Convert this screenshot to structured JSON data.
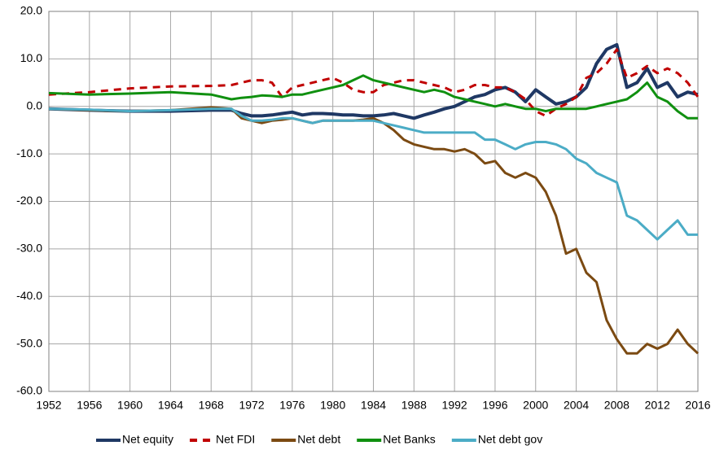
{
  "chart_data": {
    "type": "line",
    "x": [
      1952,
      1956,
      1960,
      1964,
      1968,
      1970,
      1971,
      1972,
      1973,
      1974,
      1975,
      1976,
      1977,
      1978,
      1979,
      1980,
      1981,
      1982,
      1983,
      1984,
      1985,
      1986,
      1987,
      1988,
      1989,
      1990,
      1991,
      1992,
      1993,
      1994,
      1995,
      1996,
      1997,
      1998,
      1999,
      2000,
      2001,
      2002,
      2003,
      2004,
      2005,
      2006,
      2007,
      2008,
      2009,
      2010,
      2011,
      2012,
      2013,
      2014,
      2015,
      2016
    ],
    "series": [
      {
        "name": "Net equity",
        "color": "#1f3864",
        "values": [
          -0.5,
          -0.8,
          -1,
          -1,
          -0.8,
          -0.8,
          -1.5,
          -2,
          -2,
          -1.8,
          -1.5,
          -1.2,
          -1.8,
          -1.5,
          -1.5,
          -1.6,
          -1.8,
          -1.8,
          -2,
          -2,
          -1.8,
          -1.5,
          -2,
          -2.5,
          -1.8,
          -1.2,
          -0.5,
          0,
          1,
          2,
          2.5,
          3.5,
          4,
          3,
          1,
          3.5,
          2,
          0.5,
          1,
          2,
          4,
          9,
          12,
          13,
          4,
          5,
          8,
          4,
          5,
          2,
          3,
          2.5
        ]
      },
      {
        "name": "Net FDI",
        "color": "#c00000",
        "dashed": true,
        "values": [
          2.5,
          3,
          3.8,
          4.2,
          4.3,
          4.5,
          5,
          5.5,
          5.5,
          5,
          2,
          4,
          4.5,
          5,
          5.5,
          6,
          5,
          3.5,
          3,
          3,
          4.5,
          5,
          5.5,
          5.5,
          5,
          4.5,
          4,
          3,
          3.5,
          4.5,
          4.5,
          4,
          4,
          3,
          1.5,
          -1,
          -2,
          -0.5,
          0.5,
          2,
          6,
          7,
          9,
          12,
          6,
          7,
          8.5,
          7,
          8,
          7,
          5,
          2
        ]
      },
      {
        "name": "Net debt",
        "color": "#7b4a12",
        "values": [
          -0.5,
          -0.8,
          -1,
          -0.8,
          -0.2,
          -0.5,
          -2.5,
          -3,
          -3.5,
          -3,
          -2.8,
          -2.5,
          -3,
          -3.5,
          -3,
          -3,
          -3,
          -3,
          -2.8,
          -2.5,
          -3.5,
          -5,
          -7,
          -8,
          -8.5,
          -9,
          -9,
          -9.5,
          -9,
          -10,
          -12,
          -11.5,
          -14,
          -15,
          -14,
          -15,
          -18,
          -23,
          -31,
          -30,
          -35,
          -37,
          -45,
          -49,
          -52,
          -52,
          -50,
          -51,
          -50,
          -47,
          -50,
          -52
        ]
      },
      {
        "name": "Net Banks",
        "color": "#109010",
        "values": [
          2.8,
          2.5,
          2.7,
          3,
          2.5,
          1.5,
          1.8,
          2,
          2.3,
          2.2,
          2,
          2.5,
          2.5,
          3,
          3.5,
          4,
          4.5,
          5.5,
          6.5,
          5.5,
          5,
          4.5,
          4,
          3.5,
          3,
          3.5,
          3,
          2,
          1.5,
          1,
          0.5,
          0,
          0.5,
          0,
          -0.5,
          -0.5,
          -1,
          -0.5,
          -0.5,
          -0.5,
          -0.5,
          0,
          0.5,
          1,
          1.5,
          3,
          5,
          2,
          1,
          -1,
          -2.5,
          -2.5
        ]
      },
      {
        "name": "Net debt gov",
        "color": "#4bacc6",
        "values": [
          -0.5,
          -0.7,
          -1,
          -0.8,
          -0.5,
          -0.5,
          -2,
          -3,
          -3,
          -2.8,
          -2.5,
          -2.5,
          -3,
          -3.5,
          -3,
          -3,
          -3,
          -3,
          -3,
          -3,
          -3.5,
          -4,
          -4.5,
          -5,
          -5.5,
          -5.5,
          -5.5,
          -5.5,
          -5.5,
          -5.5,
          -7,
          -7,
          -8,
          -9,
          -8,
          -7.5,
          -7.5,
          -8,
          -9,
          -11,
          -12,
          -14,
          -15,
          -16,
          -23,
          -24,
          -26,
          -28,
          -26,
          -24,
          -27,
          -27
        ]
      }
    ],
    "xlim": [
      1952,
      2016
    ],
    "xticks": [
      1952,
      1956,
      1960,
      1964,
      1968,
      1972,
      1976,
      1980,
      1984,
      1988,
      1992,
      1996,
      2000,
      2004,
      2008,
      2012,
      2016
    ],
    "ylim": [
      -60,
      20
    ],
    "yticks": [
      {
        "value": -60,
        "label": "-60.0"
      },
      {
        "value": -50,
        "label": "-50.0"
      },
      {
        "value": -40,
        "label": "-40.0"
      },
      {
        "value": -30,
        "label": "-30.0"
      },
      {
        "value": -20,
        "label": "-20.0"
      },
      {
        "value": -10,
        "label": "-10.0"
      },
      {
        "value": 0,
        "label": "0.0"
      },
      {
        "value": 10,
        "label": "10.0"
      },
      {
        "value": 20,
        "label": "20.0"
      }
    ],
    "grid": true,
    "legend": "bottom"
  }
}
